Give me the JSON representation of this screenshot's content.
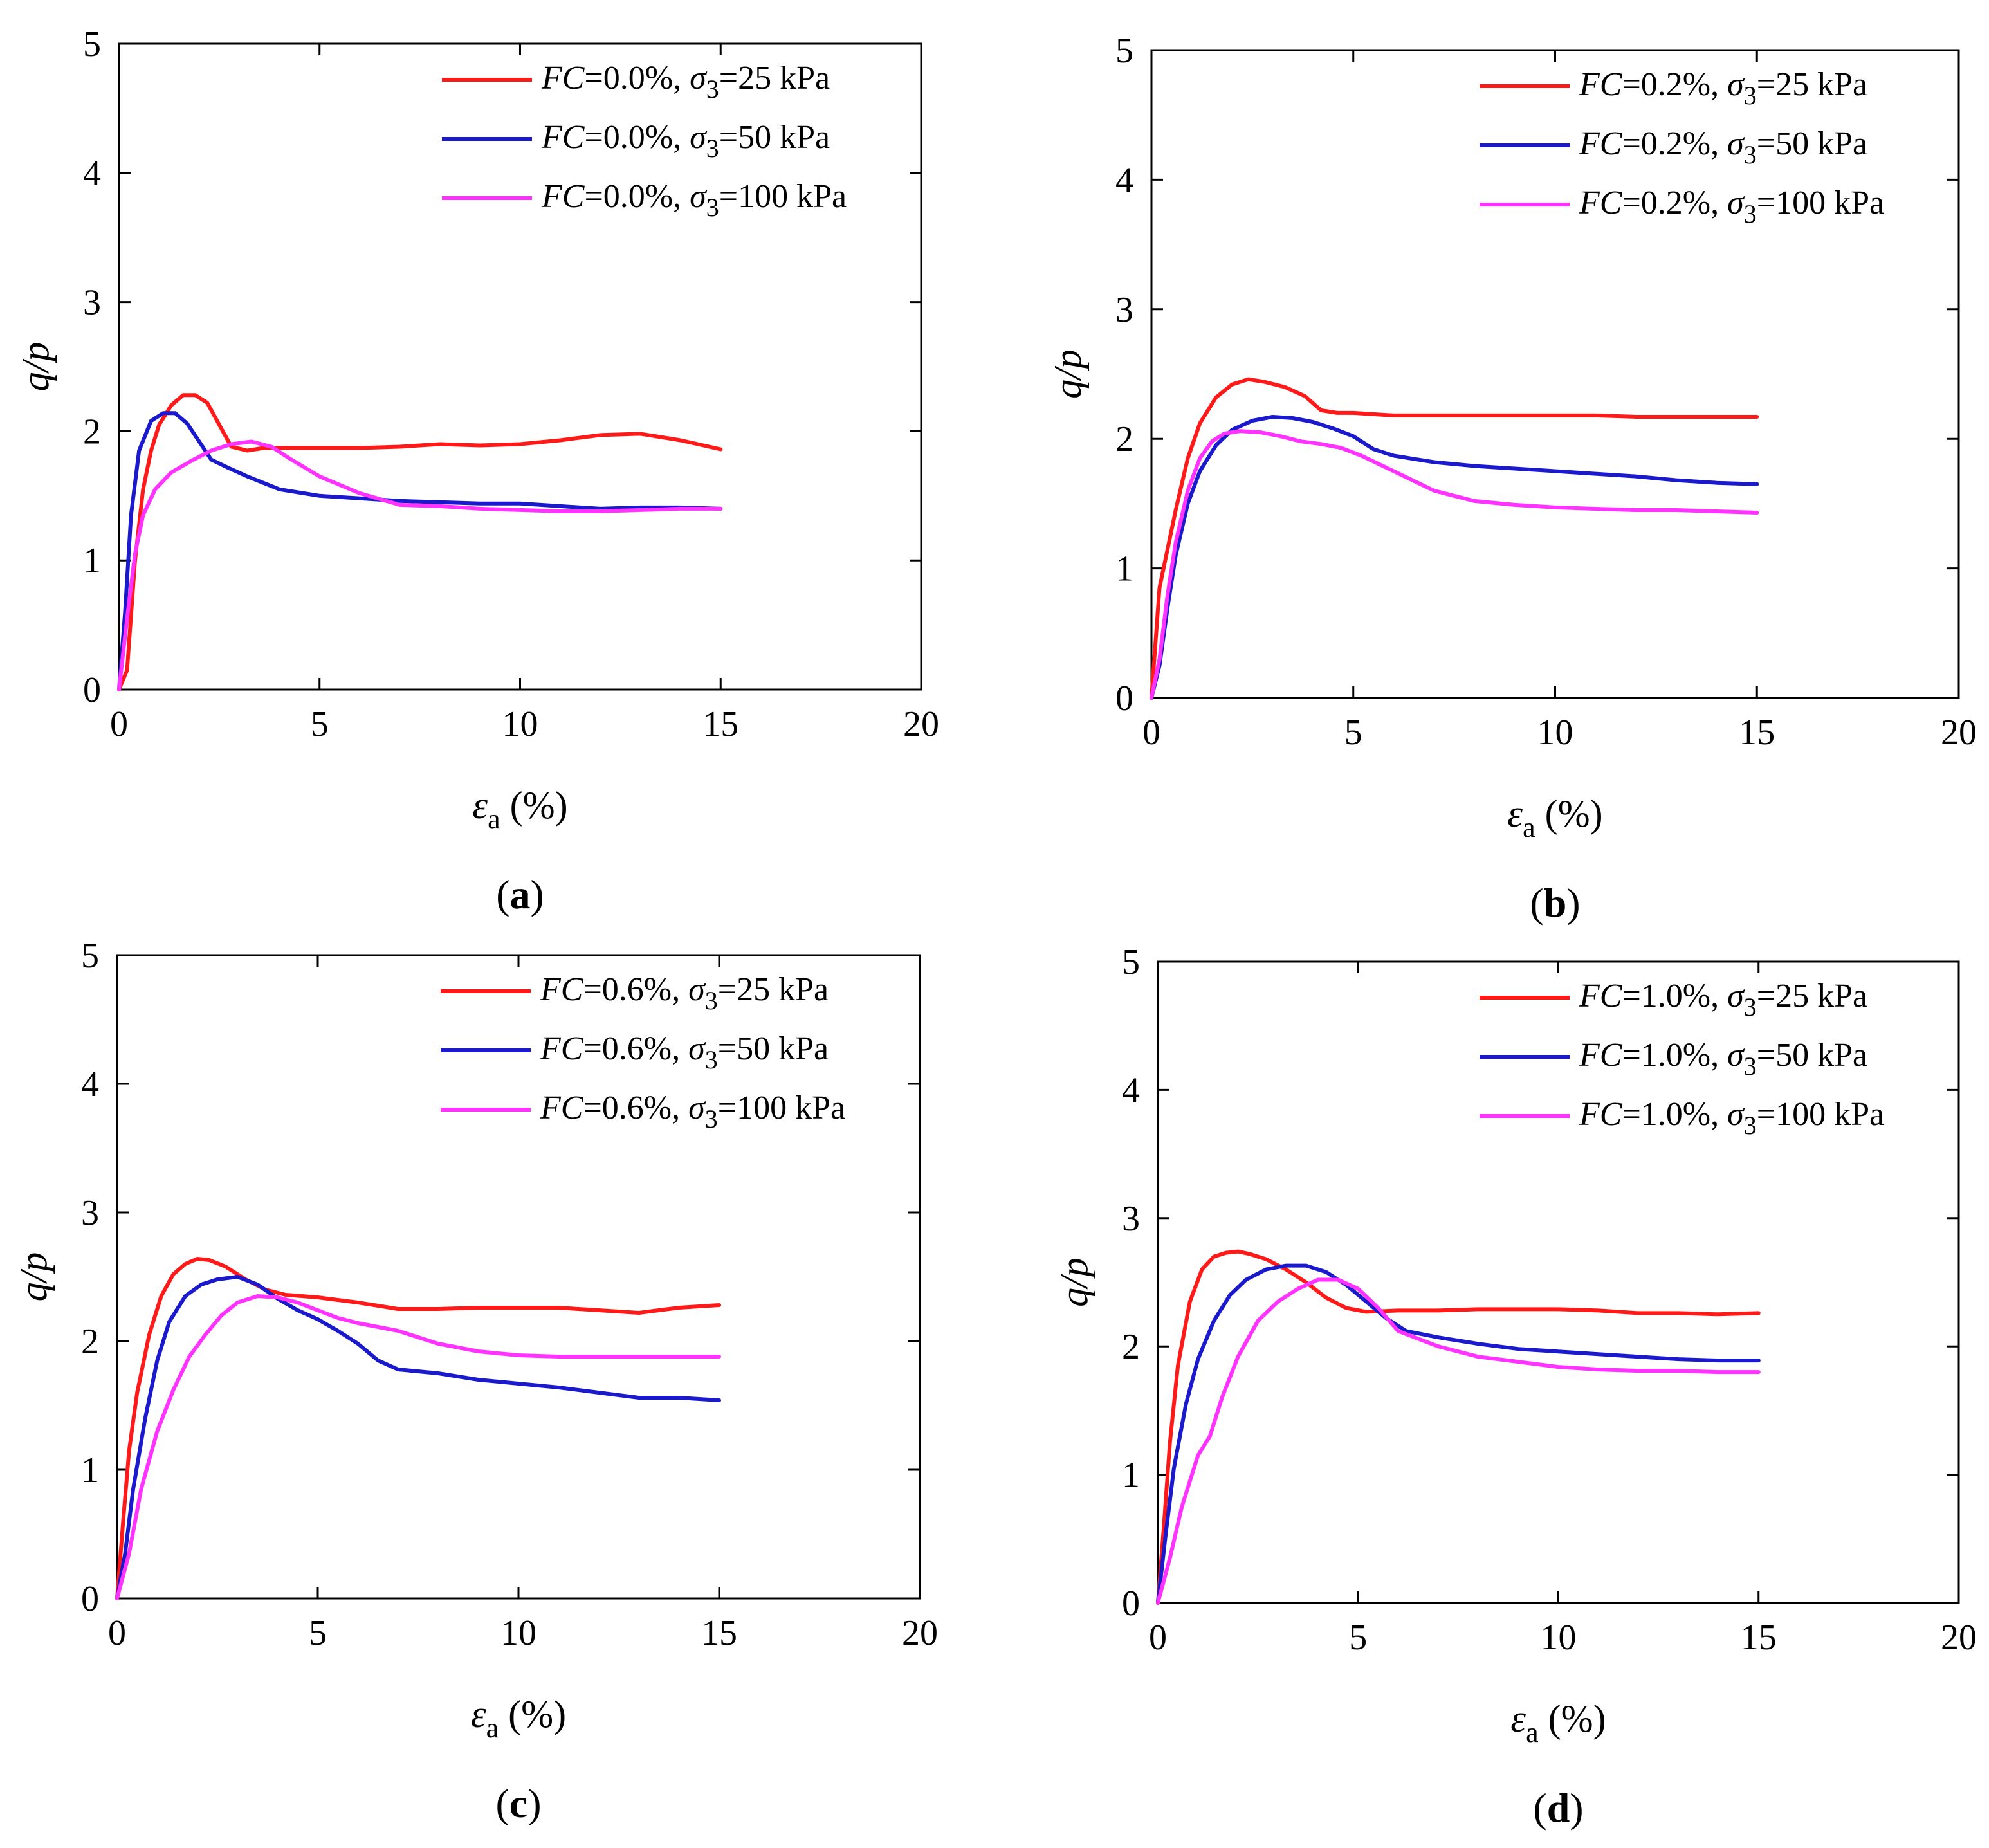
{
  "figure_title": "",
  "colors": {
    "red": "#ff1a1a",
    "blue": "#1a1acc",
    "magenta": "#ff33ff"
  },
  "chart_data": [
    {
      "type": "line",
      "panel_label": "a",
      "xlabel_symbol": "ε",
      "xlabel_sub": "a",
      "xlabel_unit": " (%)",
      "ylabel": "q/p",
      "xlim": [
        0,
        20
      ],
      "ylim": [
        0,
        5
      ],
      "xticks": [
        0,
        5,
        10,
        15,
        20
      ],
      "yticks": [
        0,
        1,
        2,
        3,
        4,
        5
      ],
      "series": [
        {
          "name": "FC=0.0%, σ3=25 kPa",
          "fc_text": "=0.0%, ",
          "sigma_text": "=25 kPa",
          "color": "#ff1a1a",
          "x": [
            0,
            0.2,
            0.4,
            0.6,
            0.8,
            1.0,
            1.3,
            1.6,
            1.9,
            2.2,
            2.5,
            2.8,
            3.2,
            3.6,
            4,
            5,
            6,
            7,
            8,
            9,
            10,
            11,
            12,
            13,
            14,
            15
          ],
          "y": [
            0,
            0.15,
            1.0,
            1.55,
            1.85,
            2.05,
            2.2,
            2.28,
            2.28,
            2.22,
            2.05,
            1.88,
            1.85,
            1.87,
            1.87,
            1.87,
            1.87,
            1.88,
            1.9,
            1.89,
            1.9,
            1.93,
            1.97,
            1.98,
            1.93,
            1.86
          ]
        },
        {
          "name": "FC=0.0%, σ3=50 kPa",
          "fc_text": "=0.0%, ",
          "sigma_text": "=50 kPa",
          "color": "#1a1acc",
          "x": [
            0,
            0.15,
            0.3,
            0.5,
            0.8,
            1.1,
            1.4,
            1.7,
            2.0,
            2.3,
            2.7,
            3.2,
            4,
            5,
            6,
            7,
            8,
            9,
            10,
            11,
            12,
            13,
            14,
            15
          ],
          "y": [
            0,
            0.6,
            1.35,
            1.85,
            2.08,
            2.14,
            2.14,
            2.06,
            1.92,
            1.78,
            1.72,
            1.65,
            1.55,
            1.5,
            1.48,
            1.46,
            1.45,
            1.44,
            1.44,
            1.42,
            1.4,
            1.41,
            1.41,
            1.4
          ]
        },
        {
          "name": "FC=0.0%, σ3=100 kPa",
          "fc_text": "=0.0%, ",
          "sigma_text": "=100 kPa",
          "color": "#ff33ff",
          "x": [
            0,
            0.2,
            0.4,
            0.6,
            0.9,
            1.3,
            1.8,
            2.3,
            2.8,
            3.3,
            3.8,
            4.3,
            5,
            6,
            7,
            8,
            9,
            10,
            11,
            12,
            13,
            14,
            15
          ],
          "y": [
            0,
            0.55,
            1.05,
            1.35,
            1.55,
            1.68,
            1.77,
            1.85,
            1.9,
            1.92,
            1.88,
            1.78,
            1.65,
            1.52,
            1.43,
            1.42,
            1.4,
            1.39,
            1.38,
            1.38,
            1.39,
            1.4,
            1.4
          ]
        }
      ]
    },
    {
      "type": "line",
      "panel_label": "b",
      "xlabel_symbol": "ε",
      "xlabel_sub": "a",
      "xlabel_unit": " (%)",
      "ylabel": "q/p",
      "xlim": [
        0,
        20
      ],
      "ylim": [
        0,
        5
      ],
      "xticks": [
        0,
        5,
        10,
        15,
        20
      ],
      "yticks": [
        0,
        1,
        2,
        3,
        4,
        5
      ],
      "series": [
        {
          "name": "FC=0.2%, σ3=25 kPa",
          "fc_text": "=0.2%, ",
          "sigma_text": "=25 kPa",
          "color": "#ff1a1a",
          "x": [
            0,
            0.2,
            0.4,
            0.6,
            0.9,
            1.2,
            1.6,
            2.0,
            2.4,
            2.8,
            3.3,
            3.8,
            4.2,
            4.6,
            5,
            6,
            7,
            8,
            9,
            10,
            11,
            12,
            13,
            14,
            15
          ],
          "y": [
            0,
            0.85,
            1.15,
            1.45,
            1.85,
            2.12,
            2.32,
            2.42,
            2.46,
            2.44,
            2.4,
            2.33,
            2.22,
            2.2,
            2.2,
            2.18,
            2.18,
            2.18,
            2.18,
            2.18,
            2.18,
            2.17,
            2.17,
            2.17,
            2.17
          ]
        },
        {
          "name": "FC=0.2%, σ3=50 kPa",
          "fc_text": "=0.2%, ",
          "sigma_text": "=50 kPa",
          "color": "#1a1acc",
          "x": [
            0,
            0.2,
            0.4,
            0.6,
            0.9,
            1.2,
            1.6,
            2.0,
            2.5,
            3.0,
            3.5,
            4.0,
            4.5,
            5.0,
            5.5,
            6,
            7,
            8,
            9,
            10,
            11,
            12,
            13,
            14,
            15
          ],
          "y": [
            0,
            0.25,
            0.7,
            1.1,
            1.5,
            1.75,
            1.95,
            2.07,
            2.14,
            2.17,
            2.16,
            2.13,
            2.08,
            2.02,
            1.92,
            1.87,
            1.82,
            1.79,
            1.77,
            1.75,
            1.73,
            1.71,
            1.68,
            1.66,
            1.65
          ]
        },
        {
          "name": "FC=0.2%, σ3=100 kPa",
          "fc_text": "=0.2%, ",
          "sigma_text": "=100 kPa",
          "color": "#ff33ff",
          "x": [
            0,
            0.2,
            0.4,
            0.6,
            0.9,
            1.2,
            1.5,
            1.8,
            2.2,
            2.7,
            3.2,
            3.7,
            4.2,
            4.7,
            5.2,
            6,
            7,
            8,
            9,
            10,
            11,
            12,
            13,
            14,
            15
          ],
          "y": [
            0,
            0.3,
            0.8,
            1.2,
            1.6,
            1.85,
            1.98,
            2.04,
            2.06,
            2.05,
            2.02,
            1.98,
            1.96,
            1.93,
            1.87,
            1.75,
            1.6,
            1.52,
            1.49,
            1.47,
            1.46,
            1.45,
            1.45,
            1.44,
            1.43
          ]
        }
      ]
    },
    {
      "type": "line",
      "panel_label": "c",
      "xlabel_symbol": "ε",
      "xlabel_sub": "a",
      "xlabel_unit": " (%)",
      "ylabel": "q/p",
      "xlim": [
        0,
        20
      ],
      "ylim": [
        0,
        5
      ],
      "xticks": [
        0,
        5,
        10,
        15,
        20
      ],
      "yticks": [
        0,
        1,
        2,
        3,
        4,
        5
      ],
      "series": [
        {
          "name": "FC=0.6%, σ3=25 kPa",
          "fc_text": "=0.6%, ",
          "sigma_text": "=25 kPa",
          "color": "#ff1a1a",
          "x": [
            0,
            0.15,
            0.3,
            0.5,
            0.8,
            1.1,
            1.4,
            1.7,
            2.0,
            2.3,
            2.7,
            3.2,
            3.7,
            4.2,
            5,
            6,
            7,
            8,
            9,
            10,
            11,
            12,
            13,
            14,
            15
          ],
          "y": [
            0,
            0.6,
            1.15,
            1.6,
            2.05,
            2.35,
            2.52,
            2.6,
            2.64,
            2.63,
            2.58,
            2.48,
            2.4,
            2.36,
            2.34,
            2.3,
            2.25,
            2.25,
            2.26,
            2.26,
            2.26,
            2.24,
            2.22,
            2.26,
            2.28
          ]
        },
        {
          "name": "FC=0.6%, σ3=50 kPa",
          "fc_text": "=0.6%, ",
          "sigma_text": "=50 kPa",
          "color": "#1a1acc",
          "x": [
            0,
            0.2,
            0.4,
            0.7,
            1.0,
            1.3,
            1.7,
            2.1,
            2.5,
            3.0,
            3.5,
            4.0,
            4.5,
            5.0,
            5.5,
            6.0,
            6.5,
            7,
            8,
            9,
            10,
            11,
            12,
            13,
            14,
            15
          ],
          "y": [
            0,
            0.35,
            0.85,
            1.4,
            1.85,
            2.15,
            2.35,
            2.44,
            2.48,
            2.5,
            2.44,
            2.33,
            2.24,
            2.17,
            2.08,
            1.98,
            1.85,
            1.78,
            1.75,
            1.7,
            1.67,
            1.64,
            1.6,
            1.56,
            1.56,
            1.54
          ]
        },
        {
          "name": "FC=0.6%, σ3=100 kPa",
          "fc_text": "=0.6%, ",
          "sigma_text": "=100 kPa",
          "color": "#ff33ff",
          "x": [
            0,
            0.3,
            0.6,
            1.0,
            1.4,
            1.8,
            2.2,
            2.6,
            3.0,
            3.5,
            4.0,
            4.5,
            5.0,
            5.5,
            6,
            7,
            8,
            9,
            10,
            11,
            12,
            13,
            14,
            15
          ],
          "y": [
            0,
            0.35,
            0.85,
            1.3,
            1.62,
            1.88,
            2.05,
            2.2,
            2.3,
            2.35,
            2.34,
            2.3,
            2.24,
            2.18,
            2.14,
            2.08,
            1.98,
            1.92,
            1.89,
            1.88,
            1.88,
            1.88,
            1.88,
            1.88
          ]
        }
      ]
    },
    {
      "type": "line",
      "panel_label": "d",
      "xlabel_symbol": "ε",
      "xlabel_sub": "a",
      "xlabel_unit": " (%)",
      "ylabel": "q/p",
      "xlim": [
        0,
        20
      ],
      "ylim": [
        0,
        5
      ],
      "xticks": [
        0,
        5,
        10,
        15,
        20
      ],
      "yticks": [
        0,
        1,
        2,
        3,
        4,
        5
      ],
      "series": [
        {
          "name": "FC=1.0%, σ3=25 kPa",
          "fc_text": "=1.0%, ",
          "sigma_text": "=25 kPa",
          "color": "#ff1a1a",
          "x": [
            0,
            0.15,
            0.3,
            0.5,
            0.8,
            1.1,
            1.4,
            1.7,
            2.0,
            2.3,
            2.7,
            3.2,
            3.7,
            4.2,
            4.7,
            5.2,
            6,
            7,
            8,
            9,
            10,
            11,
            12,
            13,
            14,
            15
          ],
          "y": [
            0,
            0.6,
            1.25,
            1.85,
            2.35,
            2.6,
            2.7,
            2.73,
            2.74,
            2.72,
            2.68,
            2.6,
            2.5,
            2.38,
            2.3,
            2.27,
            2.28,
            2.28,
            2.29,
            2.29,
            2.29,
            2.28,
            2.26,
            2.26,
            2.25,
            2.26
          ]
        },
        {
          "name": "FC=1.0%, σ3=50 kPa",
          "fc_text": "=1.0%, ",
          "sigma_text": "=50 kPa",
          "color": "#1a1acc",
          "x": [
            0,
            0.2,
            0.4,
            0.7,
            1.0,
            1.4,
            1.8,
            2.2,
            2.7,
            3.2,
            3.7,
            4.2,
            4.7,
            5.2,
            5.7,
            6.2,
            7,
            8,
            9,
            10,
            11,
            12,
            13,
            14,
            15
          ],
          "y": [
            0,
            0.55,
            1.05,
            1.55,
            1.9,
            2.2,
            2.4,
            2.52,
            2.6,
            2.63,
            2.63,
            2.58,
            2.48,
            2.35,
            2.22,
            2.12,
            2.07,
            2.02,
            1.98,
            1.96,
            1.94,
            1.92,
            1.9,
            1.89,
            1.89
          ]
        },
        {
          "name": "FC=1.0%, σ3=100 kPa",
          "fc_text": "=1.0%, ",
          "sigma_text": "=100 kPa",
          "color": "#ff33ff",
          "x": [
            0,
            0.3,
            0.6,
            1.0,
            1.3,
            1.6,
            2.0,
            2.5,
            3.0,
            3.5,
            4.0,
            4.5,
            5.0,
            5.5,
            6,
            7,
            8,
            9,
            10,
            11,
            12,
            13,
            14,
            15
          ],
          "y": [
            0,
            0.35,
            0.75,
            1.15,
            1.3,
            1.6,
            1.92,
            2.2,
            2.35,
            2.45,
            2.52,
            2.52,
            2.45,
            2.3,
            2.12,
            2.0,
            1.92,
            1.88,
            1.84,
            1.82,
            1.81,
            1.81,
            1.8,
            1.8
          ]
        }
      ]
    }
  ]
}
